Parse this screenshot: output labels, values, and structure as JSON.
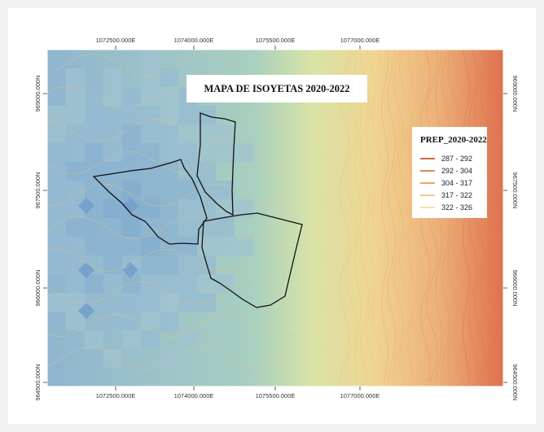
{
  "map": {
    "title": "MAPA DE ISOYETAS 2020-2022",
    "x_ticks": [
      "1072500.000E",
      "1074000.000E",
      "1075500.000E",
      "1077000.000E"
    ],
    "y_ticks": [
      "969000.000N",
      "967500.000N",
      "966000.000N",
      "964500.000N"
    ],
    "legend": {
      "title": "PREP_2020-2022",
      "items": [
        {
          "label": "287 - 292",
          "color": "#d4663e"
        },
        {
          "label": "292 - 304",
          "color": "#e08a50"
        },
        {
          "label": "304 - 317",
          "color": "#eaa868"
        },
        {
          "label": "317 - 322",
          "color": "#f0c890"
        },
        {
          "label": "322 - 326",
          "color": "#f5e0b0"
        }
      ]
    },
    "ramp_colors": {
      "low_blue": "#6f9cc9",
      "mid_green": "#b8d8a8",
      "mid_yellow": "#ecd893",
      "high_red": "#d9593f"
    }
  }
}
